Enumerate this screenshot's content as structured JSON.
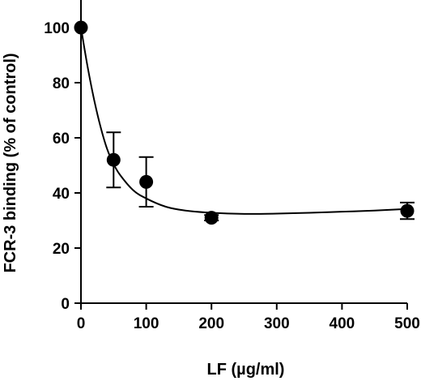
{
  "chart_data": {
    "type": "scatter",
    "title": "",
    "xlabel": "LF (µg/ml)",
    "ylabel": "FCR-3 binding (% of control)",
    "x_ticks": [
      {
        "value": 0,
        "label": "0"
      },
      {
        "value": 100,
        "label": "100"
      },
      {
        "value": 200,
        "label": "200"
      },
      {
        "value": 300,
        "label": "300"
      },
      {
        "value": 400,
        "label": "400"
      },
      {
        "value": 500,
        "label": "500"
      }
    ],
    "y_ticks": [
      {
        "value": 0,
        "label": "0"
      },
      {
        "value": 20,
        "label": "20"
      },
      {
        "value": 40,
        "label": "40"
      },
      {
        "value": 60,
        "label": "60"
      },
      {
        "value": 80,
        "label": "80"
      },
      {
        "value": 100,
        "label": "100"
      }
    ],
    "xlim": [
      0,
      500
    ],
    "ylim": [
      0,
      110
    ],
    "grid": false,
    "series": [
      {
        "points": [
          {
            "x": 0,
            "y": 100,
            "err": 0
          },
          {
            "x": 50,
            "y": 52,
            "err": 10
          },
          {
            "x": 100,
            "y": 44,
            "err": 9
          },
          {
            "x": 200,
            "y": 31,
            "err": 1
          },
          {
            "x": 500,
            "y": 33.5,
            "err": 3
          }
        ]
      }
    ],
    "fit_curve": [
      [
        0,
        100
      ],
      [
        10,
        86
      ],
      [
        20,
        74
      ],
      [
        30,
        64
      ],
      [
        40,
        56
      ],
      [
        50,
        50.5
      ],
      [
        60,
        46.5
      ],
      [
        80,
        41
      ],
      [
        100,
        38
      ],
      [
        130,
        35
      ],
      [
        160,
        33.6
      ],
      [
        200,
        32.8
      ],
      [
        250,
        32.4
      ],
      [
        300,
        32.5
      ],
      [
        350,
        32.8
      ],
      [
        400,
        33.2
      ],
      [
        450,
        33.6
      ],
      [
        500,
        34.2
      ]
    ],
    "colors": {
      "ink": "#000000",
      "background": "#ffffff"
    }
  }
}
